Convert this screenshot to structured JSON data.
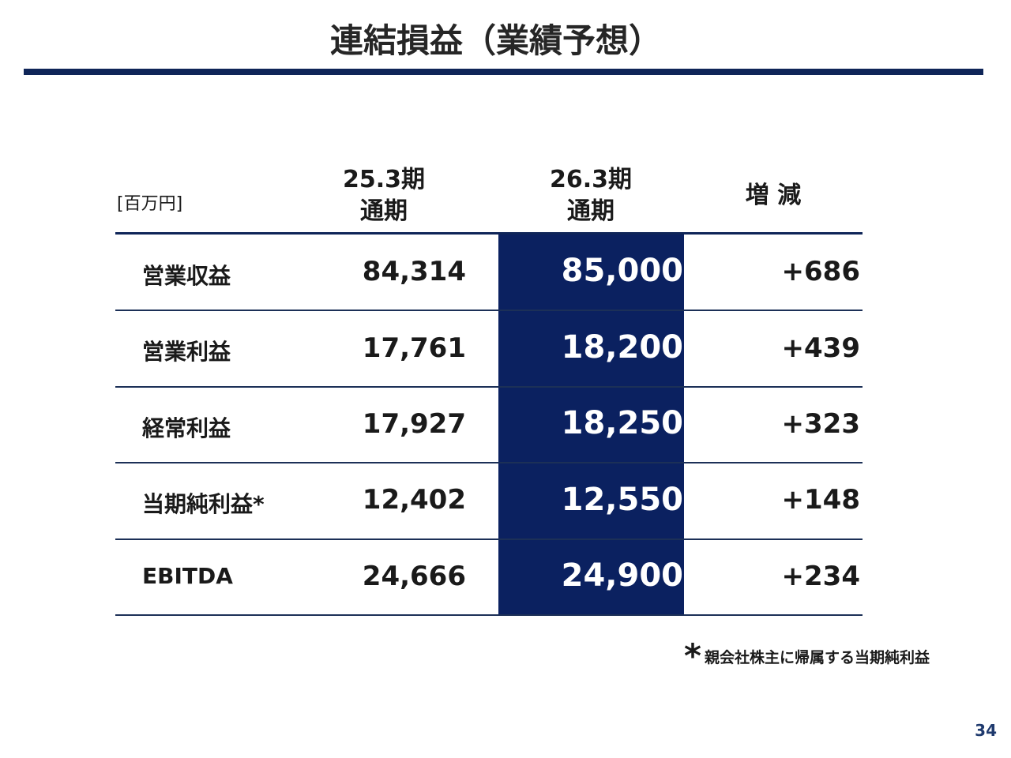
{
  "title": "連結損益（業績予想）",
  "table": {
    "unit": "[百万円]",
    "columns": [
      [
        "25.3期",
        "通期"
      ],
      [
        "26.3期",
        "通期"
      ],
      [
        "増 減"
      ]
    ],
    "rows": [
      [
        "営業収益",
        "84,314",
        "85,000",
        "+686"
      ],
      [
        "営業利益",
        "17,761",
        "18,200",
        "+439"
      ],
      [
        "経常利益",
        "17,927",
        "18,250",
        "+323"
      ],
      [
        "当期純利益*",
        "12,402",
        "12,550",
        "+148"
      ],
      [
        "EBITDA",
        "24,666",
        "24,900",
        "+234"
      ]
    ]
  },
  "footnote": {
    "mark": "*",
    "text": "親会社株主に帰属する当期純利益"
  },
  "page_number": "34"
}
